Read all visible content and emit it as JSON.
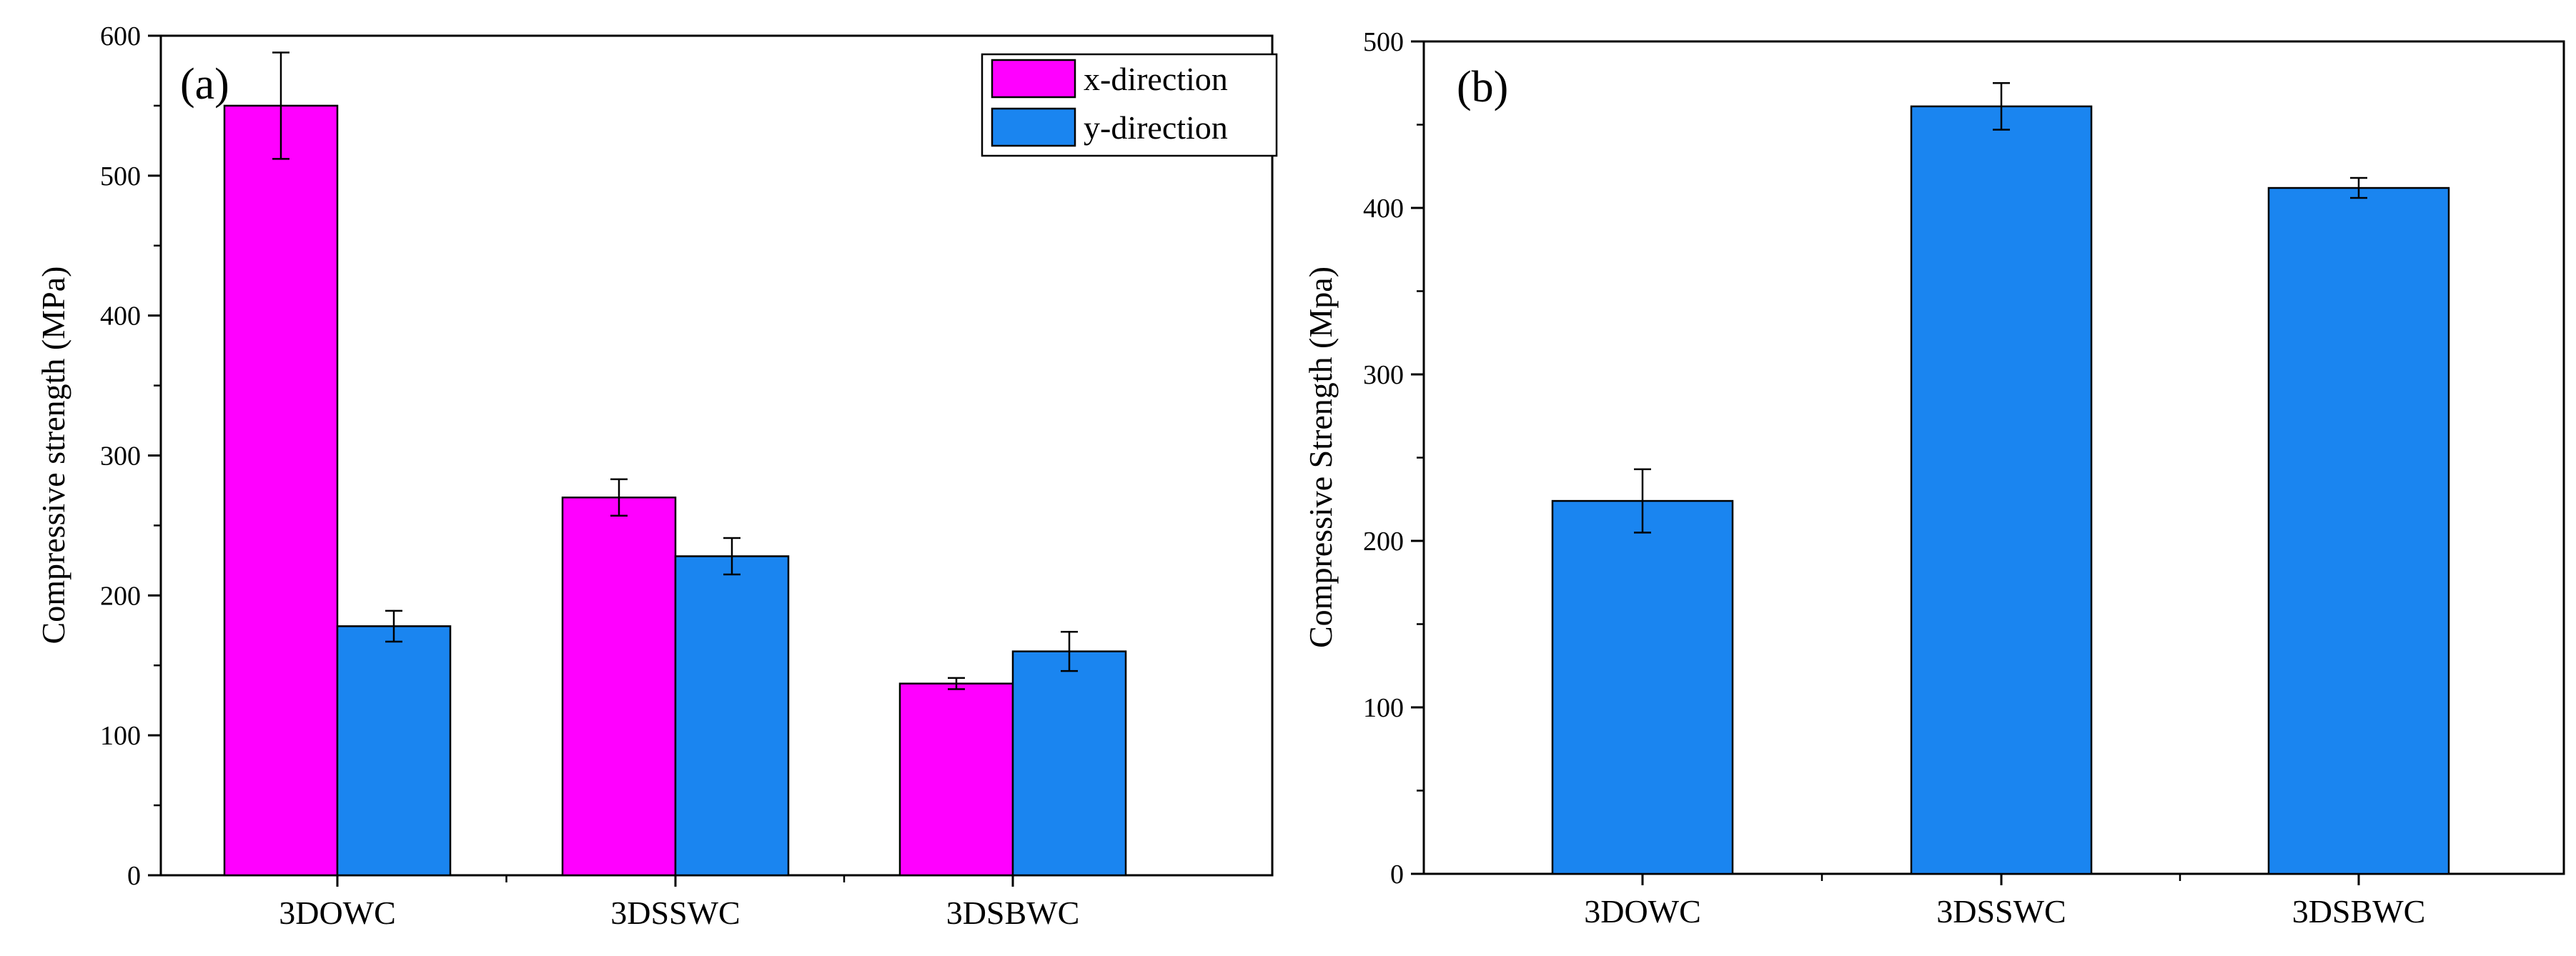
{
  "chart_data": [
    {
      "panel": "(a)",
      "type": "bar",
      "categories": [
        "3DOWC",
        "3DSSWC",
        "3DSBWC"
      ],
      "series": [
        {
          "name": "x-direction",
          "color": "#ff00ff",
          "values": [
            550,
            270,
            137
          ],
          "errors": [
            38,
            13,
            4
          ]
        },
        {
          "name": "y-direction",
          "color": "#1a85f0",
          "values": [
            178,
            228,
            160
          ],
          "errors": [
            11,
            13,
            14
          ]
        }
      ],
      "xlabel": "",
      "ylabel": "Compressive strength (MPa)",
      "ylim": [
        0,
        600
      ],
      "yticks": [
        0,
        100,
        200,
        300,
        400,
        500,
        600
      ],
      "legend": "top-right"
    },
    {
      "panel": "(b)",
      "type": "bar",
      "categories": [
        "3DOWC",
        "3DSSWC",
        "3DSBWC"
      ],
      "series": [
        {
          "name": "",
          "color": "#1a85f0",
          "values": [
            224,
            461,
            412
          ],
          "errors": [
            19,
            14,
            6
          ]
        }
      ],
      "xlabel": "",
      "ylabel": "Compressive Strength (Mpa)",
      "ylim": [
        0,
        500
      ],
      "yticks": [
        0,
        100,
        200,
        300,
        400,
        500
      ]
    }
  ]
}
